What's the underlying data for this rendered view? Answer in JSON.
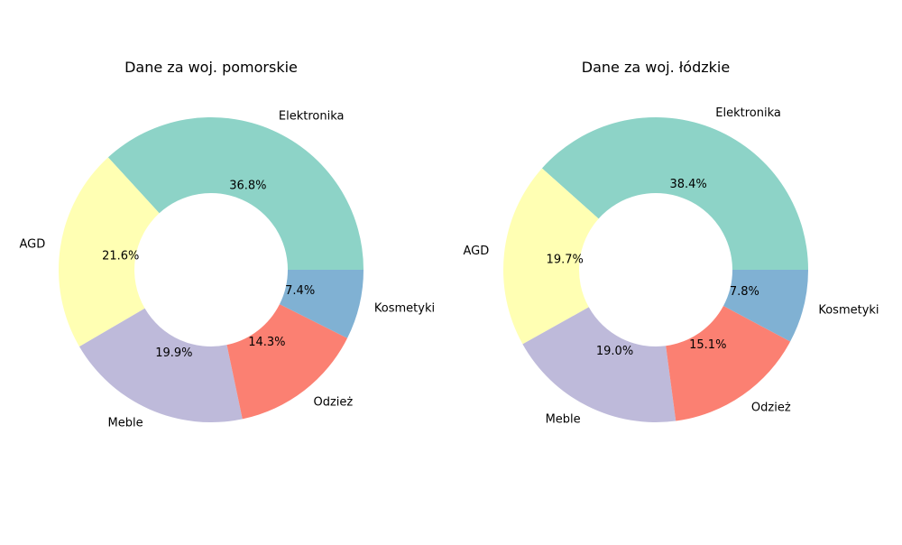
{
  "chart_data": [
    {
      "type": "pie",
      "style": "donut",
      "title": "Dane za woj. pomorskie",
      "categories": [
        "Elektronika",
        "AGD",
        "Meble",
        "Odzież",
        "Kosmetyki"
      ],
      "values": [
        36.8,
        21.6,
        19.9,
        14.3,
        7.4
      ],
      "value_labels": [
        "36.8%",
        "21.6%",
        "19.9%",
        "14.3%",
        "7.4%"
      ],
      "colors": [
        "#8dd3c7",
        "#ffffb3",
        "#bebada",
        "#fb8072",
        "#80b1d3"
      ]
    },
    {
      "type": "pie",
      "style": "donut",
      "title": "Dane za woj. łódzkie",
      "categories": [
        "Elektronika",
        "AGD",
        "Meble",
        "Odzież",
        "Kosmetyki"
      ],
      "values": [
        38.4,
        19.7,
        19.0,
        15.1,
        7.8
      ],
      "value_labels": [
        "38.4%",
        "19.7%",
        "19.0%",
        "15.1%",
        "7.8%"
      ],
      "colors": [
        "#8dd3c7",
        "#ffffb3",
        "#bebada",
        "#fb8072",
        "#80b1d3"
      ]
    }
  ]
}
